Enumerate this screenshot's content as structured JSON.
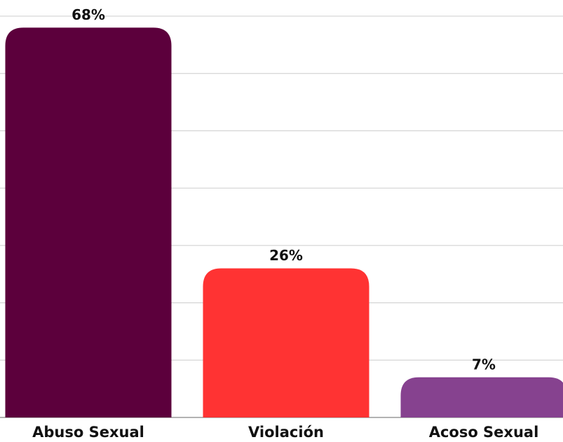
{
  "chart_data": {
    "type": "bar",
    "categories": [
      "Abuso Sexual",
      "Violación",
      "Acoso Sexual"
    ],
    "values": [
      68,
      26,
      7
    ],
    "value_labels": [
      "68%",
      "26%",
      "7%"
    ],
    "colors": [
      "#5c003c",
      "#ff3333",
      "#86428f"
    ],
    "ylim": [
      0,
      70
    ],
    "yticks": [
      0,
      10,
      20,
      30,
      40,
      50,
      60,
      70
    ],
    "grid": true
  }
}
